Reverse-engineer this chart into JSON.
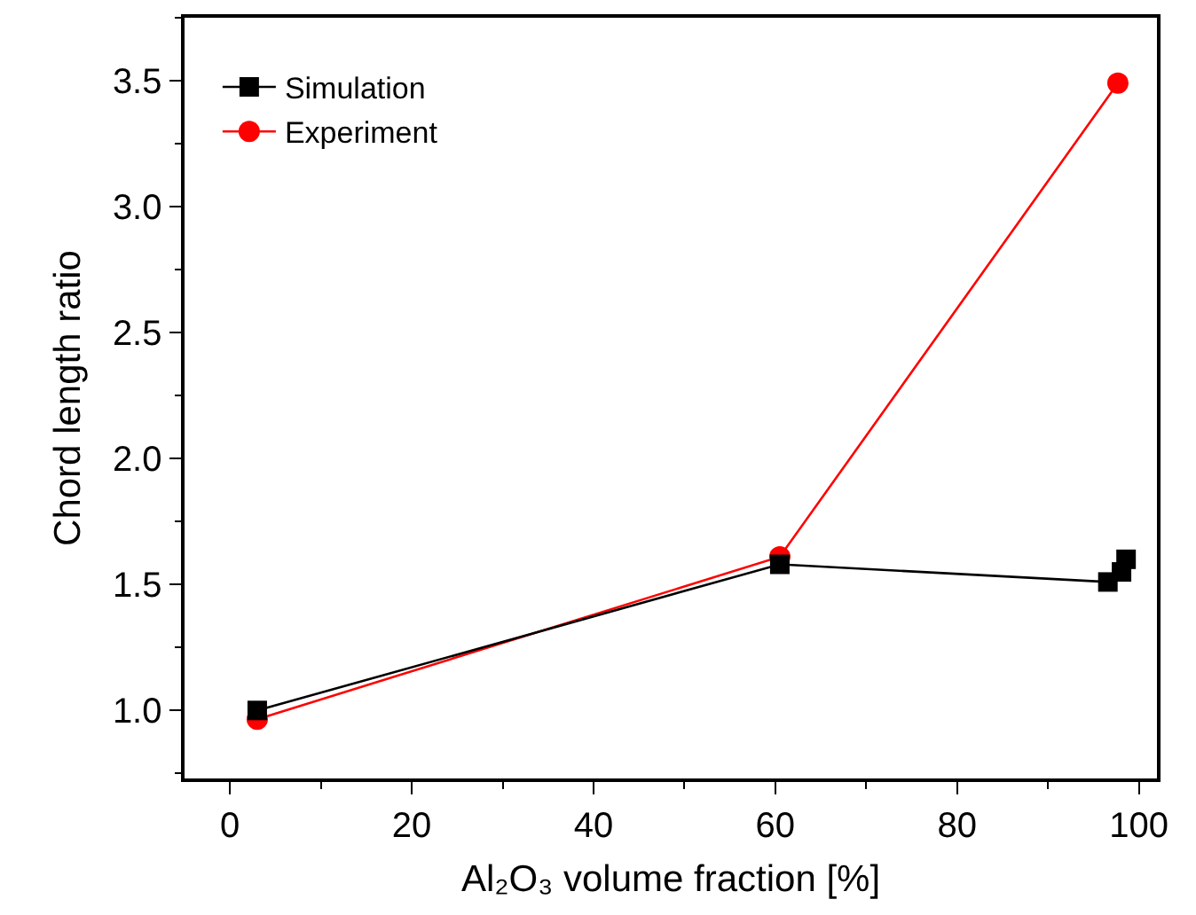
{
  "chart_data": {
    "type": "line",
    "xlabel": "Al₂O₃ volume fraction [%]",
    "ylabel": "Chord length ratio",
    "xlim": [
      -5,
      102
    ],
    "xticks": [
      0,
      20,
      40,
      60,
      80,
      100
    ],
    "ylim": [
      0.73,
      3.75
    ],
    "yticks": [
      {
        "value": 1,
        "label": "1.0"
      },
      {
        "value": 1.5,
        "label": "1.5"
      },
      {
        "value": 2,
        "label": "2.0"
      },
      {
        "value": 2.5,
        "label": "2.5"
      },
      {
        "value": 3,
        "label": "3.0"
      },
      {
        "value": 3.5,
        "label": "3.5"
      }
    ],
    "grid": false,
    "legend": "top left",
    "series": [
      {
        "name": "Simulation",
        "color": "#000000",
        "marker": "square",
        "x": [
          3,
          60.5,
          96.6,
          98.1,
          98.6
        ],
        "values": [
          1.0,
          1.58,
          1.51,
          1.55,
          1.6
        ]
      },
      {
        "name": "Experiment",
        "color": "#ff0000",
        "marker": "circle",
        "x": [
          3,
          60.5,
          97.7
        ],
        "values": [
          0.965,
          1.61,
          3.49
        ]
      }
    ]
  }
}
